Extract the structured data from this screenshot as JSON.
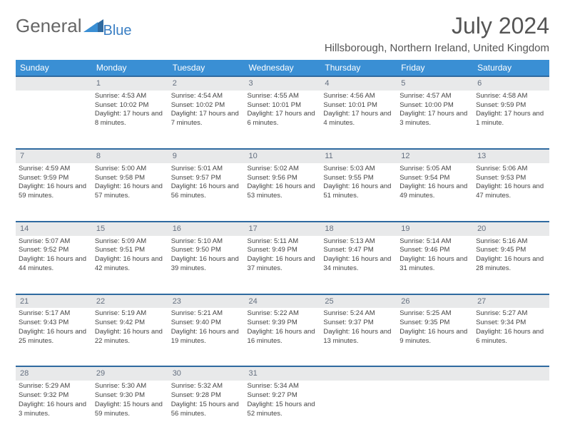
{
  "brand": {
    "name1": "General",
    "name2": "Blue"
  },
  "title": "July 2024",
  "location": "Hillsborough, Northern Ireland, United Kingdom",
  "colors": {
    "header_bg": "#3a8fd4",
    "header_text": "#ffffff",
    "daynum_bg": "#e8e9ea",
    "daynum_text": "#657080",
    "daynum_border": "#2f6aa0",
    "body_text": "#444444",
    "title_text": "#555555",
    "brand_gray": "#666666",
    "brand_blue": "#3a7fc4"
  },
  "day_headers": [
    "Sunday",
    "Monday",
    "Tuesday",
    "Wednesday",
    "Thursday",
    "Friday",
    "Saturday"
  ],
  "weeks": [
    {
      "nums": [
        "",
        "1",
        "2",
        "3",
        "4",
        "5",
        "6"
      ],
      "cells": [
        {
          "sunrise": "",
          "sunset": "",
          "daylight": ""
        },
        {
          "sunrise": "Sunrise: 4:53 AM",
          "sunset": "Sunset: 10:02 PM",
          "daylight": "Daylight: 17 hours and 8 minutes."
        },
        {
          "sunrise": "Sunrise: 4:54 AM",
          "sunset": "Sunset: 10:02 PM",
          "daylight": "Daylight: 17 hours and 7 minutes."
        },
        {
          "sunrise": "Sunrise: 4:55 AM",
          "sunset": "Sunset: 10:01 PM",
          "daylight": "Daylight: 17 hours and 6 minutes."
        },
        {
          "sunrise": "Sunrise: 4:56 AM",
          "sunset": "Sunset: 10:01 PM",
          "daylight": "Daylight: 17 hours and 4 minutes."
        },
        {
          "sunrise": "Sunrise: 4:57 AM",
          "sunset": "Sunset: 10:00 PM",
          "daylight": "Daylight: 17 hours and 3 minutes."
        },
        {
          "sunrise": "Sunrise: 4:58 AM",
          "sunset": "Sunset: 9:59 PM",
          "daylight": "Daylight: 17 hours and 1 minute."
        }
      ]
    },
    {
      "nums": [
        "7",
        "8",
        "9",
        "10",
        "11",
        "12",
        "13"
      ],
      "cells": [
        {
          "sunrise": "Sunrise: 4:59 AM",
          "sunset": "Sunset: 9:59 PM",
          "daylight": "Daylight: 16 hours and 59 minutes."
        },
        {
          "sunrise": "Sunrise: 5:00 AM",
          "sunset": "Sunset: 9:58 PM",
          "daylight": "Daylight: 16 hours and 57 minutes."
        },
        {
          "sunrise": "Sunrise: 5:01 AM",
          "sunset": "Sunset: 9:57 PM",
          "daylight": "Daylight: 16 hours and 56 minutes."
        },
        {
          "sunrise": "Sunrise: 5:02 AM",
          "sunset": "Sunset: 9:56 PM",
          "daylight": "Daylight: 16 hours and 53 minutes."
        },
        {
          "sunrise": "Sunrise: 5:03 AM",
          "sunset": "Sunset: 9:55 PM",
          "daylight": "Daylight: 16 hours and 51 minutes."
        },
        {
          "sunrise": "Sunrise: 5:05 AM",
          "sunset": "Sunset: 9:54 PM",
          "daylight": "Daylight: 16 hours and 49 minutes."
        },
        {
          "sunrise": "Sunrise: 5:06 AM",
          "sunset": "Sunset: 9:53 PM",
          "daylight": "Daylight: 16 hours and 47 minutes."
        }
      ]
    },
    {
      "nums": [
        "14",
        "15",
        "16",
        "17",
        "18",
        "19",
        "20"
      ],
      "cells": [
        {
          "sunrise": "Sunrise: 5:07 AM",
          "sunset": "Sunset: 9:52 PM",
          "daylight": "Daylight: 16 hours and 44 minutes."
        },
        {
          "sunrise": "Sunrise: 5:09 AM",
          "sunset": "Sunset: 9:51 PM",
          "daylight": "Daylight: 16 hours and 42 minutes."
        },
        {
          "sunrise": "Sunrise: 5:10 AM",
          "sunset": "Sunset: 9:50 PM",
          "daylight": "Daylight: 16 hours and 39 minutes."
        },
        {
          "sunrise": "Sunrise: 5:11 AM",
          "sunset": "Sunset: 9:49 PM",
          "daylight": "Daylight: 16 hours and 37 minutes."
        },
        {
          "sunrise": "Sunrise: 5:13 AM",
          "sunset": "Sunset: 9:47 PM",
          "daylight": "Daylight: 16 hours and 34 minutes."
        },
        {
          "sunrise": "Sunrise: 5:14 AM",
          "sunset": "Sunset: 9:46 PM",
          "daylight": "Daylight: 16 hours and 31 minutes."
        },
        {
          "sunrise": "Sunrise: 5:16 AM",
          "sunset": "Sunset: 9:45 PM",
          "daylight": "Daylight: 16 hours and 28 minutes."
        }
      ]
    },
    {
      "nums": [
        "21",
        "22",
        "23",
        "24",
        "25",
        "26",
        "27"
      ],
      "cells": [
        {
          "sunrise": "Sunrise: 5:17 AM",
          "sunset": "Sunset: 9:43 PM",
          "daylight": "Daylight: 16 hours and 25 minutes."
        },
        {
          "sunrise": "Sunrise: 5:19 AM",
          "sunset": "Sunset: 9:42 PM",
          "daylight": "Daylight: 16 hours and 22 minutes."
        },
        {
          "sunrise": "Sunrise: 5:21 AM",
          "sunset": "Sunset: 9:40 PM",
          "daylight": "Daylight: 16 hours and 19 minutes."
        },
        {
          "sunrise": "Sunrise: 5:22 AM",
          "sunset": "Sunset: 9:39 PM",
          "daylight": "Daylight: 16 hours and 16 minutes."
        },
        {
          "sunrise": "Sunrise: 5:24 AM",
          "sunset": "Sunset: 9:37 PM",
          "daylight": "Daylight: 16 hours and 13 minutes."
        },
        {
          "sunrise": "Sunrise: 5:25 AM",
          "sunset": "Sunset: 9:35 PM",
          "daylight": "Daylight: 16 hours and 9 minutes."
        },
        {
          "sunrise": "Sunrise: 5:27 AM",
          "sunset": "Sunset: 9:34 PM",
          "daylight": "Daylight: 16 hours and 6 minutes."
        }
      ]
    },
    {
      "nums": [
        "28",
        "29",
        "30",
        "31",
        "",
        "",
        ""
      ],
      "cells": [
        {
          "sunrise": "Sunrise: 5:29 AM",
          "sunset": "Sunset: 9:32 PM",
          "daylight": "Daylight: 16 hours and 3 minutes."
        },
        {
          "sunrise": "Sunrise: 5:30 AM",
          "sunset": "Sunset: 9:30 PM",
          "daylight": "Daylight: 15 hours and 59 minutes."
        },
        {
          "sunrise": "Sunrise: 5:32 AM",
          "sunset": "Sunset: 9:28 PM",
          "daylight": "Daylight: 15 hours and 56 minutes."
        },
        {
          "sunrise": "Sunrise: 5:34 AM",
          "sunset": "Sunset: 9:27 PM",
          "daylight": "Daylight: 15 hours and 52 minutes."
        },
        {
          "sunrise": "",
          "sunset": "",
          "daylight": ""
        },
        {
          "sunrise": "",
          "sunset": "",
          "daylight": ""
        },
        {
          "sunrise": "",
          "sunset": "",
          "daylight": ""
        }
      ]
    }
  ]
}
